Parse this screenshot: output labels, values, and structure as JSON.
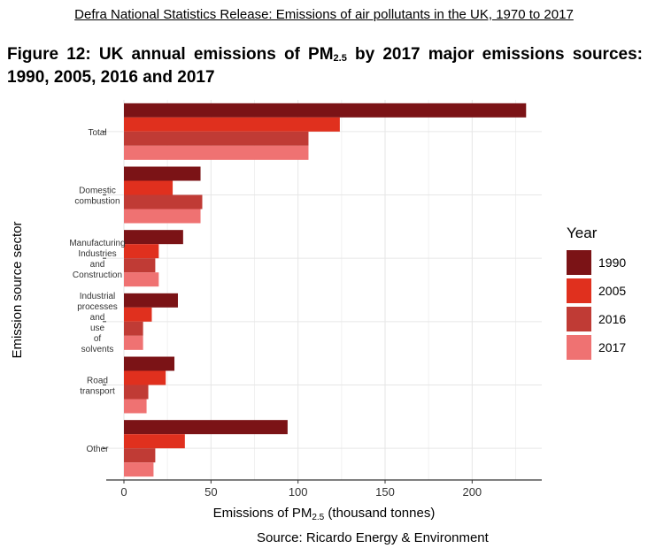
{
  "header": {
    "text": "Defra National Statistics Release: Emissions of air pollutants in the UK, 1970 to 2017"
  },
  "figure": {
    "title_pre": "Figure 12: UK annual emissions of PM",
    "title_sub": "2.5",
    "title_post": " by 2017 major emissions sources: 1990, 2005, 2016 and 2017"
  },
  "source": "Source: Ricardo Energy & Environment",
  "legend": {
    "title": "Year"
  },
  "chart_data": {
    "type": "bar",
    "orientation": "horizontal",
    "categories": [
      [
        "Total"
      ],
      [
        "Domestic",
        "combustion"
      ],
      [
        "Manufacturing",
        "Industries",
        "and",
        "Construction"
      ],
      [
        "Industrial",
        "processes",
        "and",
        "use",
        "of",
        "solvents"
      ],
      [
        "Road",
        "transport"
      ],
      [
        "Other"
      ]
    ],
    "series": [
      {
        "name": "1990",
        "color": "#7b1316",
        "values": [
          231,
          44,
          34,
          31,
          29,
          94
        ]
      },
      {
        "name": "2005",
        "color": "#e0301e",
        "values": [
          124,
          28,
          20,
          16,
          24,
          35
        ]
      },
      {
        "name": "2016",
        "color": "#c03b35",
        "values": [
          106,
          45,
          18,
          11,
          14,
          18
        ]
      },
      {
        "name": "2017",
        "color": "#ef7272",
        "values": [
          106,
          44,
          20,
          11,
          13,
          17
        ]
      }
    ],
    "xlabel_pre": "Emissions of PM",
    "xlabel_sub": "2.5",
    "xlabel_post": " (thousand tonnes)",
    "ylabel": "Emission source sector",
    "xlim": [
      0,
      240
    ],
    "xticks": [
      0,
      50,
      100,
      150,
      200
    ],
    "grid": true,
    "legend_position": "right"
  }
}
